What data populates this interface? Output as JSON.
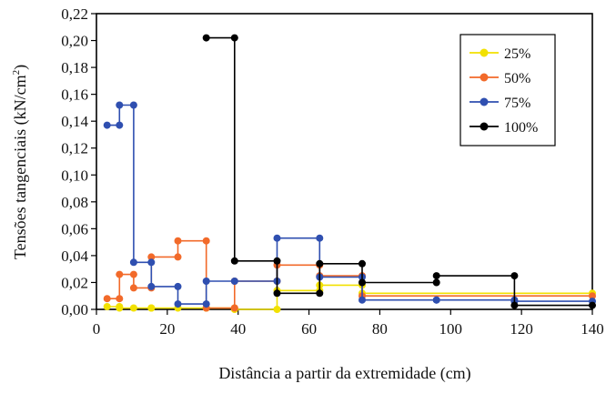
{
  "chart_data": {
    "type": "line",
    "title": "",
    "xlabel": "Distância a partir da extremidade (cm)",
    "ylabel_main": "Tensões tangenciais (kN/cm",
    "ylabel_sup": "2",
    "ylabel_tail": ")",
    "xlim": [
      0,
      140
    ],
    "ylim": [
      0,
      0.22
    ],
    "x_ticks": [
      0,
      20,
      40,
      60,
      80,
      100,
      120,
      140
    ],
    "x_tick_labels": [
      "0",
      "20",
      "40",
      "60",
      "80",
      "100",
      "120",
      "140"
    ],
    "y_ticks": [
      0,
      0.02,
      0.04,
      0.06,
      0.08,
      0.1,
      0.12,
      0.14,
      0.16,
      0.18,
      0.2,
      0.22
    ],
    "y_tick_labels": [
      "0,00",
      "0,02",
      "0,04",
      "0,06",
      "0,08",
      "0,10",
      "0,12",
      "0,14",
      "0,16",
      "0,18",
      "0,20",
      "0,22"
    ],
    "grid": false,
    "legend_position": "top-right",
    "series": [
      {
        "name": "25%",
        "color": "#f2e100",
        "points": [
          [
            3,
            0.002
          ],
          [
            6.5,
            0.002
          ],
          [
            6.5,
            0.001
          ],
          [
            10.5,
            0.001
          ],
          [
            15.5,
            0.001
          ],
          [
            15.5,
            0.001
          ],
          [
            23,
            0.001
          ],
          [
            31,
            0.001
          ],
          [
            31,
            0.001
          ],
          [
            39,
            0.001
          ],
          [
            39,
            0.0
          ],
          [
            51,
            0.0
          ],
          [
            51,
            0.014
          ],
          [
            63,
            0.014
          ],
          [
            63,
            0.018
          ],
          [
            75,
            0.018
          ],
          [
            75,
            0.012
          ],
          [
            140,
            0.012
          ]
        ]
      },
      {
        "name": "50%",
        "color": "#f26a2a",
        "points": [
          [
            3,
            0.008
          ],
          [
            6.5,
            0.008
          ],
          [
            6.5,
            0.026
          ],
          [
            10.5,
            0.026
          ],
          [
            10.5,
            0.016
          ],
          [
            15.5,
            0.016
          ],
          [
            15.5,
            0.039
          ],
          [
            23,
            0.039
          ],
          [
            23,
            0.051
          ],
          [
            31,
            0.051
          ],
          [
            31,
            0.001
          ],
          [
            39,
            0.001
          ],
          [
            39,
            0.021
          ],
          [
            51,
            0.021
          ],
          [
            51,
            0.033
          ],
          [
            63,
            0.033
          ],
          [
            63,
            0.025
          ],
          [
            75,
            0.025
          ],
          [
            75,
            0.01
          ],
          [
            140,
            0.01
          ]
        ]
      },
      {
        "name": "75%",
        "color": "#2f4fb0",
        "points": [
          [
            3,
            0.137
          ],
          [
            6.5,
            0.137
          ],
          [
            6.5,
            0.152
          ],
          [
            10.5,
            0.152
          ],
          [
            10.5,
            0.035
          ],
          [
            15.5,
            0.035
          ],
          [
            15.5,
            0.017
          ],
          [
            23,
            0.017
          ],
          [
            23,
            0.004
          ],
          [
            31,
            0.004
          ],
          [
            31,
            0.021
          ],
          [
            39,
            0.021
          ],
          [
            51,
            0.021
          ],
          [
            51,
            0.053
          ],
          [
            63,
            0.053
          ],
          [
            63,
            0.024
          ],
          [
            75,
            0.024
          ],
          [
            75,
            0.007
          ],
          [
            96,
            0.007
          ],
          [
            96,
            0.007
          ],
          [
            118,
            0.007
          ],
          [
            118,
            0.006
          ],
          [
            140,
            0.006
          ]
        ]
      },
      {
        "name": "100%",
        "color": "#000000",
        "points": [
          [
            31,
            0.202
          ],
          [
            39,
            0.202
          ],
          [
            39,
            0.036
          ],
          [
            51,
            0.036
          ],
          [
            51,
            0.012
          ],
          [
            63,
            0.012
          ],
          [
            63,
            0.034
          ],
          [
            75,
            0.034
          ],
          [
            75,
            0.02
          ],
          [
            96,
            0.02
          ],
          [
            96,
            0.025
          ],
          [
            118,
            0.025
          ],
          [
            118,
            0.003
          ],
          [
            140,
            0.003
          ]
        ]
      }
    ]
  }
}
